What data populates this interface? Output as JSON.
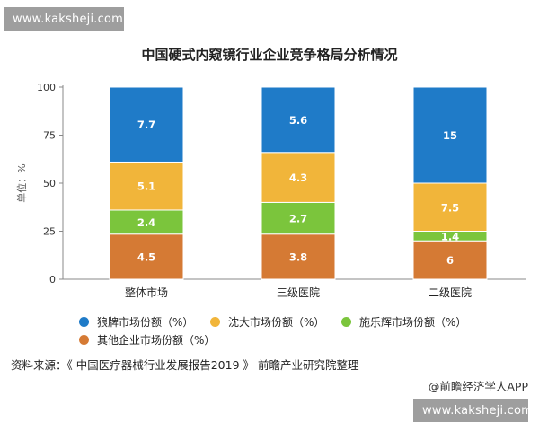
{
  "watermark_top": "www.kaksheji.com",
  "watermark_bottom": "www.kaksheji.com",
  "footer": {
    "source": "资料来源：《 中国医疗器械行业发展报告2019 》 前瞻产业研究院整理",
    "credit": "@前瞻经济学人APP"
  },
  "colors": {
    "langpai": "#1f7bc8",
    "shenda": "#f1b53a",
    "shileyuhui": "#7bc53c",
    "other": "#d57a34"
  },
  "chart_data": {
    "type": "bar",
    "stacked": true,
    "title": "中国硬式内窥镜行业企业竞争格局分析情况",
    "ylabel": "单位：%",
    "xlabel": "",
    "ylim": [
      0,
      100
    ],
    "yticks": [
      "0",
      "25",
      "50",
      "75",
      "100"
    ],
    "categories": [
      "整体市场",
      "三级医院",
      "二级医院"
    ],
    "series": [
      {
        "name": "其他企业市场份额（%）",
        "color": "#d57a34",
        "values": [
          4.5,
          3.8,
          6
        ],
        "labels": [
          "4.5",
          "3.8",
          "6"
        ],
        "heights": [
          23.5,
          23.5,
          20
        ]
      },
      {
        "name": "施乐辉市场份额（%）",
        "color": "#7bc53c",
        "values": [
          2.4,
          2.7,
          1.4
        ],
        "labels": [
          "2.4",
          "2.7",
          "1.4"
        ],
        "heights": [
          12.5,
          16.5,
          5
        ]
      },
      {
        "name": "沈大市场份额（%）",
        "color": "#f1b53a",
        "values": [
          5.1,
          4.3,
          7.5
        ],
        "labels": [
          "5.1",
          "4.3",
          "7.5"
        ],
        "heights": [
          25,
          26,
          25
        ]
      },
      {
        "name": "狼牌市场份额（%）",
        "color": "#1f7bc8",
        "values": [
          7.7,
          5.6,
          15
        ],
        "labels": [
          "7.7",
          "5.6",
          "15"
        ],
        "heights": [
          39,
          34,
          50
        ]
      }
    ],
    "legend": {
      "placement": "bottom",
      "order": [
        "狼牌市场份额（%）",
        "沈大市场份额（%）",
        "施乐辉市场份额（%）",
        "其他企业市场份额（%）"
      ]
    },
    "grid": false
  }
}
